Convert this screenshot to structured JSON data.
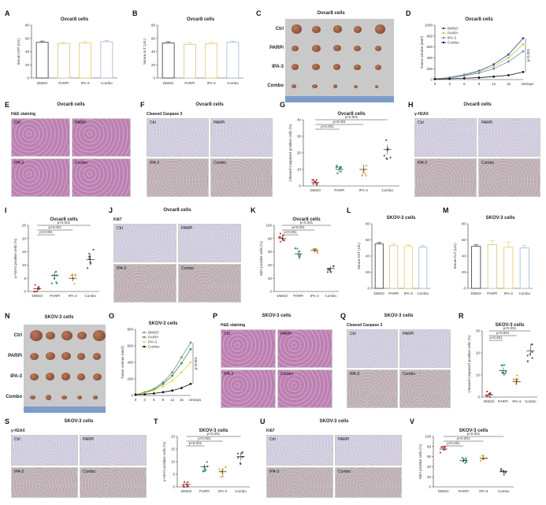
{
  "labels": {
    "A": "A",
    "B": "B",
    "C": "C",
    "D": "D",
    "E": "E",
    "F": "F",
    "G": "G",
    "H": "H",
    "I": "I",
    "J": "J",
    "K": "K",
    "L": "L",
    "M": "M",
    "N": "N",
    "O": "O",
    "P": "P",
    "Q": "Q",
    "R": "R",
    "S": "S",
    "T": "T",
    "U": "U",
    "V": "V"
  },
  "titles": {
    "ovcar8": "Ovcar8 cells",
    "skov3": "SKOV-3  cells"
  },
  "subtitles": {
    "he": "H&E staining",
    "caspase": "Cleaved Caspase 3",
    "h2ax": "γ-H2AX",
    "ki67": "Ki67"
  },
  "groups": [
    "Ctrl",
    "PARPi",
    "IPA-3",
    "Combo"
  ],
  "tumor_rows": [
    "Ctrl",
    "PARPi",
    "IPA-3",
    "Combo"
  ],
  "colors": {
    "dmso": "#cc3333",
    "parpi": "#2e9a5a",
    "ipa3": "#e0a030",
    "combo": "#555555",
    "bar_dmso": "#333333",
    "bar_parpi": "#d9c27a",
    "bar_ipa3": "#e8c860",
    "bar_combo": "#9fb4d8",
    "ovcar_dmso_line": "#2850a8",
    "ovcar_parpi_line": "#d8c030",
    "ovcar_ipa_line": "#6a8fd0",
    "ovcar_combo_line": "#111111"
  },
  "chart_data": [
    {
      "id": "A",
      "type": "bar",
      "title": "Ovcar8 cells",
      "categories": [
        "DMSO",
        "PARPi",
        "IPA-3",
        "Combo"
      ],
      "values": [
        54,
        52,
        53,
        55
      ],
      "errors": [
        2,
        2,
        2,
        2
      ],
      "ylabel": "Serum AST (U/L)",
      "ylim": [
        0,
        80
      ],
      "yticks": [
        0,
        20,
        40,
        60,
        80
      ]
    },
    {
      "id": "B",
      "type": "bar",
      "title": "Ovcar8 cells",
      "categories": [
        "DMSO",
        "PARPi",
        "IPA-3",
        "Combo"
      ],
      "values": [
        53,
        51,
        52,
        54
      ],
      "errors": [
        2,
        2,
        2,
        2
      ],
      "ylabel": "Serum ALT (U/L)",
      "ylim": [
        0,
        80
      ],
      "yticks": [
        0,
        20,
        40,
        60,
        80
      ]
    },
    {
      "id": "D",
      "type": "line",
      "title": "Ovcar8 cells",
      "x": [
        0,
        3,
        6,
        9,
        12,
        15,
        18
      ],
      "xlabel": "Days",
      "ylabel": "Tumor volume (mm³)",
      "ylim": [
        0,
        1000
      ],
      "yticks": [
        0,
        200,
        400,
        600,
        800,
        1000
      ],
      "annotation": "p<0.001",
      "series": [
        {
          "name": "DMSO",
          "values": [
            10,
            40,
            90,
            160,
            280,
            460,
            760
          ]
        },
        {
          "name": "PARPi",
          "values": [
            10,
            35,
            80,
            140,
            240,
            400,
            650
          ]
        },
        {
          "name": "IPA-3",
          "values": [
            10,
            30,
            70,
            120,
            200,
            330,
            520
          ]
        },
        {
          "name": "Combo",
          "values": [
            10,
            15,
            25,
            35,
            55,
            80,
            140
          ]
        }
      ]
    },
    {
      "id": "G",
      "type": "scatter",
      "title": "Ovcar8 cells",
      "categories": [
        "DMSO",
        "PARPi",
        "IPA-3",
        "Combo"
      ],
      "ylabel": "Cleaved Caspase3 positive cells (%)",
      "ylim": [
        0,
        40
      ],
      "yticks": [
        0,
        10,
        20,
        30,
        40
      ],
      "means": [
        2,
        10,
        10,
        22
      ],
      "sems": [
        1,
        2,
        2,
        3
      ],
      "pvalues": [
        "p<0.001",
        "p<0.001",
        "p<0.001"
      ]
    },
    {
      "id": "I",
      "type": "scatter",
      "title": "Ovcar8 cells",
      "categories": [
        "DMSO",
        "PARPi",
        "IPA-3",
        "Combo"
      ],
      "ylabel": "γ-H2AX positive cells (%)",
      "ylim": [
        0,
        25
      ],
      "yticks": [
        0,
        5,
        10,
        15,
        20,
        25
      ],
      "means": [
        1,
        6,
        5,
        12
      ],
      "sems": [
        0.8,
        1.5,
        1.2,
        2
      ],
      "pvalues": [
        "p<0.001",
        "p<0.001",
        "p<0.001"
      ]
    },
    {
      "id": "K",
      "type": "scatter",
      "title": "Ovcar8 cells",
      "categories": [
        "DMSO",
        "PARPi",
        "IPA-3",
        "Combo"
      ],
      "ylabel": "Ki67 positive cells (%)",
      "ylim": [
        0,
        100
      ],
      "yticks": [
        0,
        20,
        40,
        60,
        80,
        100
      ],
      "means": [
        80,
        57,
        62,
        35
      ],
      "sems": [
        4,
        5,
        3,
        3
      ],
      "pvalues": [
        "p<0.001",
        "p<0.001",
        "p<0.001"
      ]
    },
    {
      "id": "L",
      "type": "bar",
      "title": "SKOV-3  cells",
      "categories": [
        "DMSO",
        "PARPi",
        "IPA-3",
        "Combo"
      ],
      "values": [
        55,
        53,
        52,
        51
      ],
      "errors": [
        2,
        2,
        2,
        2
      ],
      "ylabel": "Serum AST (U/L)",
      "ylim": [
        0,
        80
      ],
      "yticks": [
        0,
        20,
        40,
        60,
        80
      ]
    },
    {
      "id": "M",
      "type": "bar",
      "title": "SKOV-3  cells",
      "categories": [
        "DMSO",
        "PARPi",
        "IPA-3",
        "Combo"
      ],
      "values": [
        52,
        54,
        51,
        50
      ],
      "errors": [
        2,
        5,
        6,
        3
      ],
      "ylabel": "Serum ALT (U/L)",
      "ylim": [
        0,
        80
      ],
      "yticks": [
        0,
        20,
        40,
        60,
        80
      ]
    },
    {
      "id": "O",
      "type": "line",
      "title": "SKOV-3  cells",
      "x": [
        0,
        3,
        6,
        9,
        12,
        15,
        18
      ],
      "xlabel": "Days",
      "ylabel": "Tumor volume (mm³)",
      "ylim": [
        0,
        800
      ],
      "yticks": [
        0,
        200,
        400,
        600,
        800
      ],
      "annotation": "p<0.001",
      "series": [
        {
          "name": "DMSO",
          "values": [
            10,
            40,
            80,
            160,
            280,
            460,
            640
          ]
        },
        {
          "name": "PARPi",
          "values": [
            10,
            35,
            70,
            140,
            240,
            390,
            560
          ]
        },
        {
          "name": "IPA-3",
          "values": [
            10,
            30,
            60,
            110,
            180,
            280,
            400
          ]
        },
        {
          "name": "Combo",
          "values": [
            10,
            15,
            25,
            40,
            60,
            90,
            140
          ]
        }
      ]
    },
    {
      "id": "R",
      "type": "scatter",
      "title": "SKOV-3  cells",
      "categories": [
        "DMSO",
        "PARPi",
        "IPA-3",
        "Combo"
      ],
      "ylabel": "Cleaved Caspase3 positive cells (%)",
      "ylim": [
        0,
        30
      ],
      "yticks": [
        0,
        10,
        20,
        30
      ],
      "means": [
        1,
        12,
        7,
        21
      ],
      "sems": [
        0.8,
        1.5,
        1.5,
        2.5
      ],
      "pvalues": [
        "p<0.001",
        "p<0.001",
        "p<0.001"
      ]
    },
    {
      "id": "T",
      "type": "scatter",
      "title": "SKOV-3  cells",
      "categories": [
        "DMSO",
        "PARPi",
        "IPA-3",
        "Combo"
      ],
      "ylabel": "γ-H2AX positive cells (%)",
      "ylim": [
        0,
        20
      ],
      "yticks": [
        0,
        5,
        10,
        15,
        20
      ],
      "means": [
        1,
        8,
        6,
        12
      ],
      "sems": [
        0.8,
        1,
        1,
        1.5
      ],
      "pvalues": [
        "p<0.001",
        "p<0.001",
        "p<0.001"
      ]
    },
    {
      "id": "V",
      "type": "scatter",
      "title": "SKOV-3  cells",
      "categories": [
        "DMSO",
        "PARPi",
        "IPA-3",
        "Combo"
      ],
      "ylabel": "Ki67 positive cells (%)",
      "ylim": [
        0,
        100
      ],
      "yticks": [
        0,
        20,
        40,
        60,
        80,
        100
      ],
      "means": [
        75,
        52,
        57,
        30
      ],
      "sems": [
        4,
        3,
        3,
        3
      ],
      "pvalues": [
        "p<0.001",
        "p<0.001",
        "p<0.001"
      ]
    }
  ]
}
